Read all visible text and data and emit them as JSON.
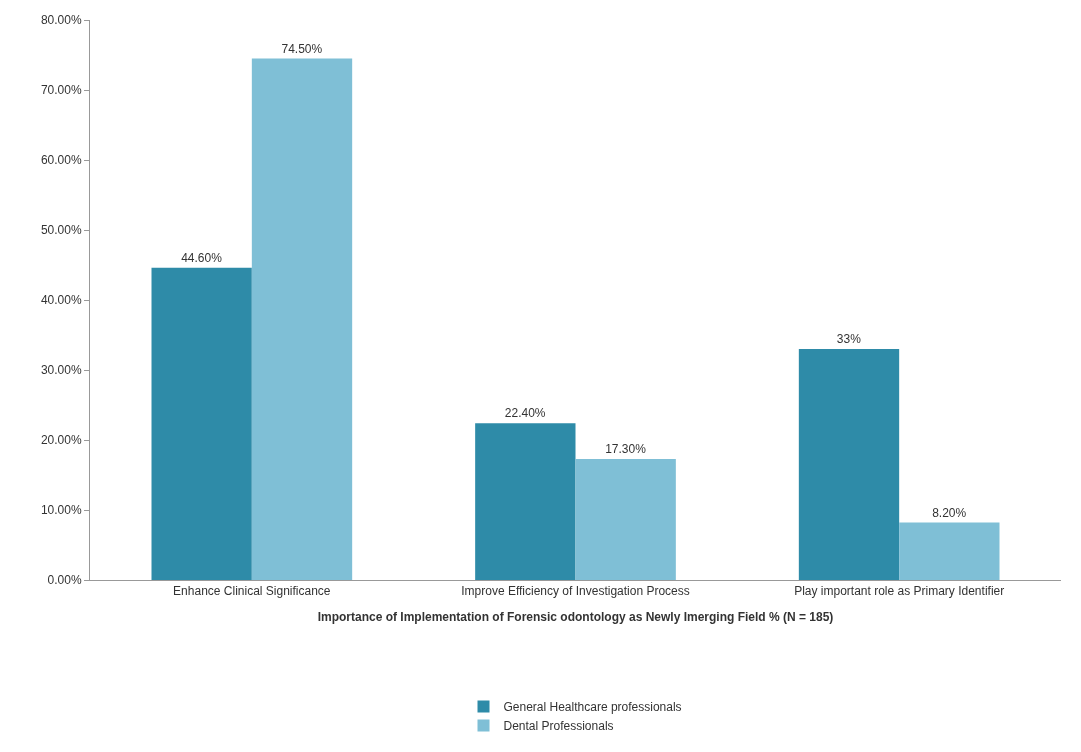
{
  "chart_data": {
    "type": "bar",
    "xlabel": "Importance of Implementation of Forensic odontology as Newly Imerging Field % (N = 185)",
    "categories": [
      "Enhance Clinical Significance",
      "Improve Efficiency of Investigation Process",
      "Play important role as Primary Identifier"
    ],
    "series": [
      {
        "name": "General Healthcare professionals",
        "color": "#2e8ba8",
        "values": [
          44.6,
          22.4,
          33
        ],
        "value_labels": [
          "44.60%",
          "22.40%",
          "33%"
        ]
      },
      {
        "name": "Dental Professionals",
        "color": "#7fbfd6",
        "values": [
          74.5,
          17.3,
          8.2
        ],
        "value_labels": [
          "74.50%",
          "17.30%",
          "8.20%"
        ]
      }
    ],
    "ylim": [
      0,
      80
    ],
    "yticks": [
      {
        "value": 0,
        "label": "0.00%"
      },
      {
        "value": 10,
        "label": "10.00%"
      },
      {
        "value": 20,
        "label": "20.00%"
      },
      {
        "value": 30,
        "label": "30.00%"
      },
      {
        "value": 40,
        "label": "40.00%"
      },
      {
        "value": 50,
        "label": "50.00%"
      },
      {
        "value": 60,
        "label": "60.00%"
      },
      {
        "value": 70,
        "label": "70.00%"
      },
      {
        "value": 80,
        "label": "80.00%"
      }
    ],
    "grid": false,
    "legend": "bottom"
  }
}
